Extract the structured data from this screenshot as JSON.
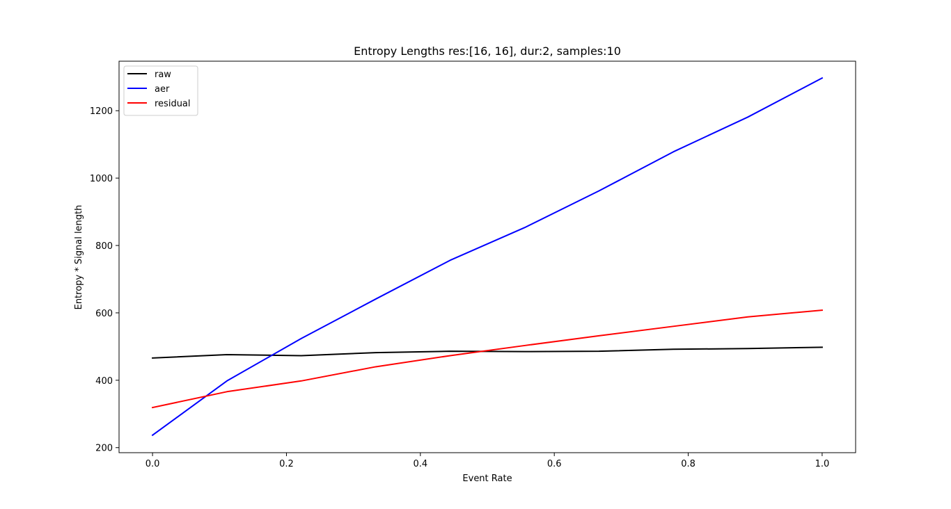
{
  "chart_data": {
    "type": "line",
    "title": "Entropy Lengths res:[16, 16], dur:2, samples:10",
    "xlabel": "Event Rate",
    "ylabel": "Entropy * Signal length",
    "x": [
      0.0,
      0.1111,
      0.2222,
      0.3333,
      0.4444,
      0.5556,
      0.6667,
      0.7778,
      0.8889,
      1.0
    ],
    "xlim": [
      -0.05,
      1.05
    ],
    "ylim": [
      185,
      1347
    ],
    "xticks": [
      0.0,
      0.2,
      0.4,
      0.6,
      0.8,
      1.0
    ],
    "xtick_labels": [
      "0.0",
      "0.2",
      "0.4",
      "0.6",
      "0.8",
      "1.0"
    ],
    "yticks": [
      200,
      400,
      600,
      800,
      1000,
      1200
    ],
    "ytick_labels": [
      "200",
      "400",
      "600",
      "800",
      "1000",
      "1200"
    ],
    "grid": false,
    "legend_position": "top-left",
    "series": [
      {
        "name": "raw",
        "color": "#000000",
        "values": [
          466,
          476,
          473,
          482,
          486,
          485,
          486,
          492,
          494,
          498
        ]
      },
      {
        "name": "aer",
        "color": "#0000ff",
        "values": [
          237,
          398,
          524,
          641,
          756,
          853,
          962,
          1078,
          1181,
          1297
        ]
      },
      {
        "name": "residual",
        "color": "#ff0000",
        "values": [
          319,
          366,
          398,
          440,
          473,
          503,
          532,
          560,
          588,
          608
        ]
      }
    ]
  }
}
